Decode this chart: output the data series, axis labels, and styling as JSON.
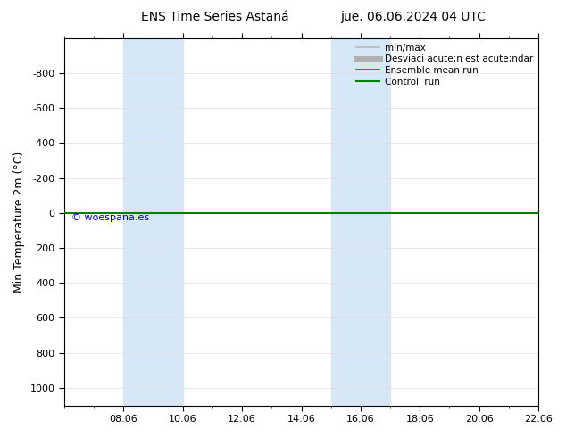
{
  "title_left": "ENS Time Series Astaná",
  "title_right": "jue. 06.06.2024 04 UTC",
  "ylabel": "Min Temperature 2m (°C)",
  "ylim_bottom": -1000,
  "ylim_top": 1100,
  "yticks": [
    -800,
    -600,
    -400,
    -200,
    0,
    200,
    400,
    600,
    800,
    1000
  ],
  "shaded_regions": [
    {
      "xstart": 2.0,
      "xend": 4.0,
      "color": "#d6e8f7"
    },
    {
      "xstart": 9.0,
      "xend": 11.0,
      "color": "#d6e8f7"
    }
  ],
  "control_run_y": 0.0,
  "ensemble_mean_y": 0.0,
  "watermark": "© woespana.es",
  "watermark_color": "#0000cc",
  "legend_items": [
    {
      "label": "min/max",
      "color": "#c0c0c0",
      "lw": 1.5
    },
    {
      "label": "Desviaci acute;n est acute;ndar",
      "color": "#b0b0b0",
      "lw": 5
    },
    {
      "label": "Ensemble mean run",
      "color": "#ff0000",
      "lw": 1.2
    },
    {
      "label": "Controll run",
      "color": "#008000",
      "lw": 1.5
    }
  ],
  "background_color": "#ffffff",
  "x_num_days": 16,
  "x_start": 0,
  "x_end": 16,
  "x_major_ticks": [
    2,
    4,
    6,
    8,
    10,
    12,
    14,
    16
  ],
  "x_major_labels": [
    "08.06",
    "10.06",
    "12.06",
    "14.06",
    "16.06",
    "18.06",
    "20.06",
    "22.06"
  ],
  "x_minor_ticks": [
    0,
    1,
    2,
    3,
    4,
    5,
    6,
    7,
    8,
    9,
    10,
    11,
    12,
    13,
    14,
    15,
    16
  ]
}
